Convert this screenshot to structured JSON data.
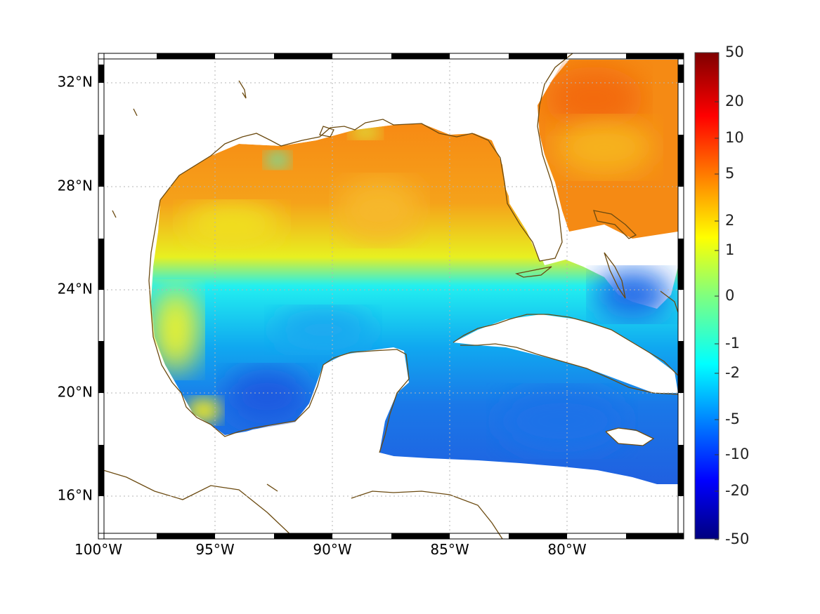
{
  "map": {
    "lat_labels": [
      "32°N",
      "28°N",
      "24°N",
      "20°N",
      "16°N"
    ],
    "lon_labels": [
      "100°W",
      "95°W",
      "90°W",
      "85°W",
      "80°W"
    ],
    "lat_values": [
      32,
      28,
      24,
      20,
      16
    ],
    "lon_values": [
      -100,
      -95,
      -90,
      -85,
      -80
    ],
    "extent": {
      "lon": [
        -100,
        -75
      ],
      "lat": [
        14.25,
        33
      ]
    },
    "grid": "dotted",
    "coastline_color": "#6b4a10",
    "land_color": "#ffffff"
  },
  "colorbar": {
    "position": "right",
    "colormap": "jet",
    "tick_labels": [
      "50",
      "20",
      "10",
      "5",
      "2",
      "1",
      "0",
      "-1",
      "-2",
      "-5",
      "-10",
      "-20",
      "-50"
    ]
  }
}
